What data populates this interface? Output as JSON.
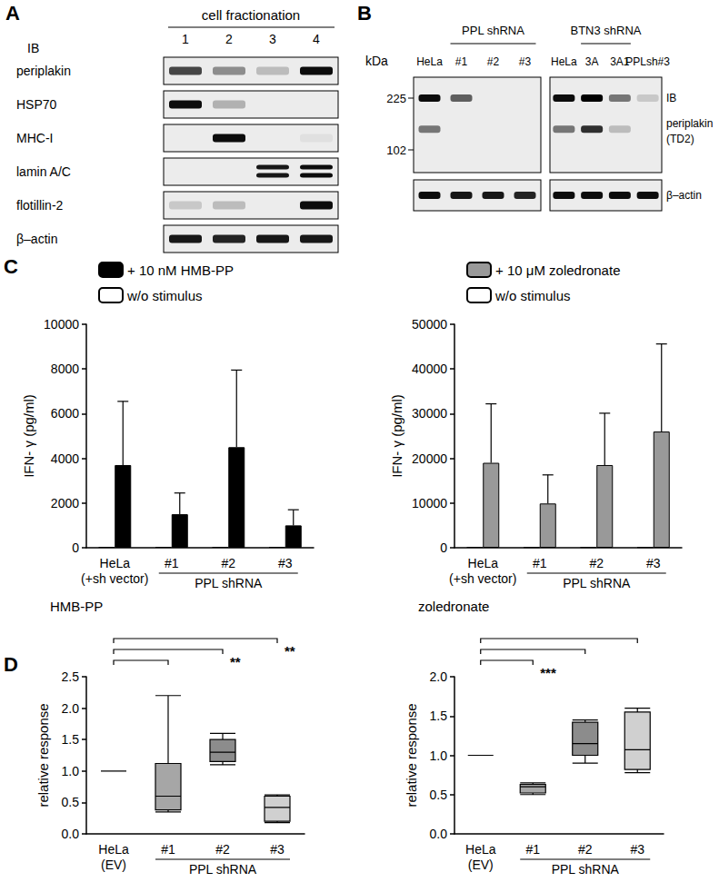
{
  "blots": [
    {
      "panel_label": "A",
      "header": "cell fractionation",
      "ib_label": "IB",
      "lanes": [
        "1",
        "2",
        "3",
        "4"
      ],
      "rows": [
        {
          "name": "periplakin",
          "intensity": [
            0.7,
            0.4,
            0.2,
            0.95
          ]
        },
        {
          "name": "HSP70",
          "intensity": [
            0.95,
            0.25,
            0,
            0
          ]
        },
        {
          "name": "MHC-I",
          "intensity": [
            0,
            0.95,
            0,
            0.05
          ]
        },
        {
          "name": "lamin A/C",
          "intensity": [
            0,
            0,
            0.9,
            0.95
          ],
          "doublet": true
        },
        {
          "name": "flotillin-2",
          "intensity": [
            0.15,
            0.2,
            0,
            0.95
          ]
        },
        {
          "name": "β–actin",
          "intensity": [
            0.9,
            0.85,
            0.9,
            0.9
          ]
        }
      ]
    },
    {
      "panel_label": "B",
      "ib_label": "IB",
      "kda_label": "kDa",
      "markers": [
        225,
        102
      ],
      "rows": [
        {
          "name": "periplakin\n(TD2)",
          "bands_kda": [
            225,
            140
          ]
        },
        {
          "name": "β–actin"
        }
      ],
      "blocks": [
        {
          "lanes": [
            "HeLa",
            "#1",
            "#2",
            "#3"
          ],
          "group_label": "PPL shRNA",
          "group_lanes": [
            1,
            3
          ],
          "intensity": [
            [
              [
                0.95,
                0.6,
                0,
                0
              ],
              [
                0.5,
                0,
                0,
                0
              ]
            ],
            [
              [
                0.95,
                0.9,
                0.9,
                0.85
              ]
            ]
          ]
        },
        {
          "lanes": [
            "HeLa",
            "3A",
            "3A1",
            "PPLsh#3"
          ],
          "group_label": "BTN3 shRNA",
          "group_lanes": [
            1,
            2
          ],
          "intensity": [
            [
              [
                0.95,
                1,
                0.5,
                0.15
              ],
              [
                0.5,
                0.8,
                0.2,
                0
              ]
            ],
            [
              [
                0.95,
                0.95,
                0.95,
                0.95
              ]
            ]
          ]
        }
      ]
    }
  ],
  "chart_data": [
    {
      "type": "bar",
      "panel_label": "C",
      "ylabel": "IFN- γ (pg/ml)",
      "categories": [
        "HeLa\n(+sh vector)",
        "#1",
        "#2",
        "#3"
      ],
      "group_label": "PPL shRNA",
      "series": [
        {
          "name": "+ 10 nM HMB-PP",
          "color": "#000000",
          "values": [
            3700,
            1500,
            4500,
            1000
          ],
          "errors": [
            2850,
            950,
            3450,
            700
          ]
        },
        {
          "name": "w/o stimulus",
          "color": "#ffffff",
          "values": [
            40,
            40,
            40,
            40
          ]
        }
      ],
      "ylim": [
        0,
        10000
      ],
      "yticks": [
        0,
        2000,
        4000,
        6000,
        8000,
        10000
      ],
      "legend": "top-left",
      "grid": false
    },
    {
      "type": "bar",
      "ylabel": "IFN- γ (pg/ml)",
      "categories": [
        "HeLa\n(+sh vector)",
        "#1",
        "#2",
        "#3"
      ],
      "group_label": "PPL shRNA",
      "series": [
        {
          "name": "+ 10 μM zoledronate",
          "color": "#999999",
          "values": [
            19000,
            9900,
            18500,
            26000
          ],
          "errors": [
            13200,
            6400,
            11600,
            19600
          ]
        },
        {
          "name": "w/o stimulus",
          "color": "#ffffff",
          "values": [
            200,
            150,
            150,
            150
          ]
        }
      ],
      "ylim": [
        0,
        50000
      ],
      "yticks": [
        0,
        10000,
        20000,
        30000,
        40000,
        50000
      ],
      "legend": "top-left",
      "grid": false
    },
    {
      "type": "boxplot",
      "panel_label": "D",
      "title": "HMB-PP",
      "ylabel": "relative response",
      "categories": [
        "HeLa\n(EV)",
        "#1",
        "#2",
        "#3"
      ],
      "group_label": "PPL shRNA",
      "boxes": [
        [
          1,
          1,
          1,
          1,
          1
        ],
        [
          0.35,
          0.38,
          0.6,
          1.12,
          2.2
        ],
        [
          1.1,
          1.15,
          1.3,
          1.5,
          1.6
        ],
        [
          0.18,
          0.2,
          0.42,
          0.6,
          0.62
        ]
      ],
      "colors": [
        "#ffffff",
        "#a6a6a6",
        "#8c8c8c",
        "#d0d0d0"
      ],
      "comparisons": [
        [
          "HeLa\n(EV)",
          "#1"
        ],
        [
          "HeLa\n(EV)",
          "#2"
        ],
        [
          "HeLa\n(EV)",
          "#3"
        ]
      ],
      "significance": [
        {
          "category": "#2",
          "label": "**"
        },
        {
          "category": "#3",
          "label": "**"
        }
      ],
      "ylim": [
        0,
        2.5
      ],
      "yticks": [
        {
          "value": 0,
          "label": "0.0"
        },
        0.5,
        {
          "value": 1,
          "label": "1.0"
        },
        1.5,
        {
          "value": 2,
          "label": "2.0"
        },
        2.5
      ],
      "grid": false
    },
    {
      "type": "boxplot",
      "title": "zoledronate",
      "ylabel": "relative response",
      "categories": [
        "HeLa\n(EV)",
        "#1",
        "#2",
        "#3"
      ],
      "group_label": "PPL shRNA",
      "boxes": [
        [
          1,
          1,
          1,
          1,
          1
        ],
        [
          0.5,
          0.52,
          0.6,
          0.63,
          0.65
        ],
        [
          0.9,
          1.0,
          1.15,
          1.42,
          1.45
        ],
        [
          0.78,
          0.82,
          1.07,
          1.55,
          1.6
        ]
      ],
      "colors": [
        "#ffffff",
        "#a6a6a6",
        "#8c8c8c",
        "#d0d0d0"
      ],
      "comparisons": [
        [
          "HeLa\n(EV)",
          "#1"
        ],
        [
          "HeLa\n(EV)",
          "#2"
        ],
        [
          "HeLa\n(EV)",
          "#3"
        ]
      ],
      "significance": [
        {
          "category": "#1",
          "label": "***"
        }
      ],
      "ylim": [
        0,
        2.0
      ],
      "yticks": [
        {
          "value": 0,
          "label": "0.0"
        },
        0.5,
        {
          "value": 1,
          "label": "1.0"
        },
        1.5,
        {
          "value": 2,
          "label": "2.0"
        }
      ],
      "grid": false
    }
  ]
}
